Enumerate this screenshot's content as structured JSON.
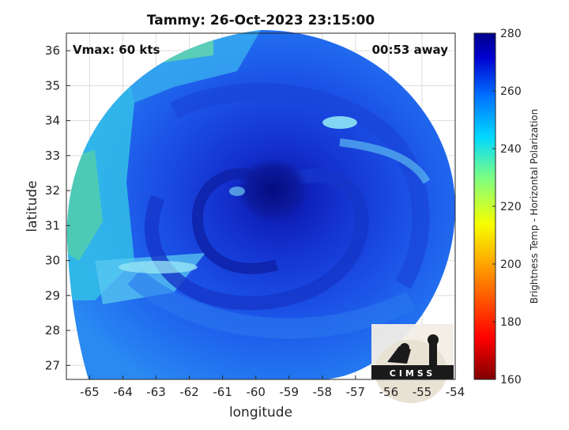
{
  "title": "Tammy: 26-Oct-2023 23:15:00",
  "vmax_label": "Vmax: 60 kts",
  "time_label": "00:53 away",
  "xlabel": "longitude",
  "ylabel": "latitude",
  "x_ticks": [
    "-65",
    "-64",
    "-63",
    "-62",
    "-61",
    "-60",
    "-59",
    "-58",
    "-57",
    "-56",
    "-55",
    "-54"
  ],
  "y_ticks": [
    "36",
    "35",
    "34",
    "33",
    "32",
    "31",
    "30",
    "29",
    "28",
    "27"
  ],
  "colorbar": {
    "label": "Brightness Temp - Horizontal Polarization",
    "ticks": [
      "280",
      "260",
      "240",
      "220",
      "200",
      "180",
      "160"
    ],
    "range": [
      160,
      280
    ]
  },
  "logo_text": "CIMSS",
  "map": {
    "lon_range": [
      -65.7,
      -54
    ],
    "lat_range": [
      26.6,
      36.5
    ],
    "storm_center": {
      "lon": -59.7,
      "lat": 31.9
    }
  }
}
